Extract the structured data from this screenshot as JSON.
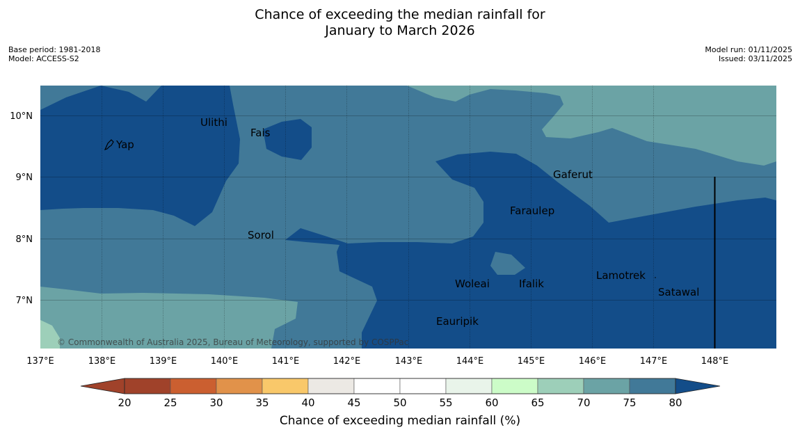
{
  "title": {
    "line1": "Chance of exceeding the median rainfall for",
    "line2": "January to March 2026"
  },
  "meta": {
    "base_period": "Base period: 1981-2018",
    "model": "Model: ACCESS-S2",
    "model_run": "Model run: 01/11/2025",
    "issued": "Issued: 03/11/2025"
  },
  "colors": {
    "band_60_65": "#9dcfb9",
    "band_65_70": "#6ba3a5",
    "band_70_75": "#417998",
    "band_75_80": "#134d89",
    "above_80": "#134d89",
    "below_20": "#a0422a",
    "bins": [
      "#a0422a",
      "#cb5f30",
      "#e1924a",
      "#f9c86a",
      "#ece9e4",
      "#ffffff",
      "#ffffff",
      "#e9f4ea",
      "#ccfcc8",
      "#9dcfb9",
      "#6ba3a5",
      "#417998"
    ]
  },
  "axes": {
    "lon_ticks": [
      "137°E",
      "138°E",
      "139°E",
      "140°E",
      "141°E",
      "142°E",
      "143°E",
      "144°E",
      "145°E",
      "146°E",
      "147°E",
      "148°E"
    ],
    "lat_ticks": [
      "10°N",
      "9°N",
      "8°N",
      "7°N"
    ]
  },
  "places": [
    {
      "name": "Yap"
    },
    {
      "name": "Ulithi"
    },
    {
      "name": "Fais"
    },
    {
      "name": "Gaferut"
    },
    {
      "name": "Faraulep"
    },
    {
      "name": "Sorol"
    },
    {
      "name": "Lamotrek"
    },
    {
      "name": "Woleai"
    },
    {
      "name": "Ifalik"
    },
    {
      "name": "Satawal"
    },
    {
      "name": "Eauripik"
    }
  ],
  "copyright": "© Commonwealth of Australia 2025, Bureau of Meteorology, supported by COSPPac",
  "colorbar": {
    "labels": [
      "20",
      "25",
      "30",
      "35",
      "40",
      "45",
      "50",
      "55",
      "60",
      "65",
      "70",
      "75",
      "80"
    ],
    "title": "Chance of exceeding median rainfall (%)"
  }
}
